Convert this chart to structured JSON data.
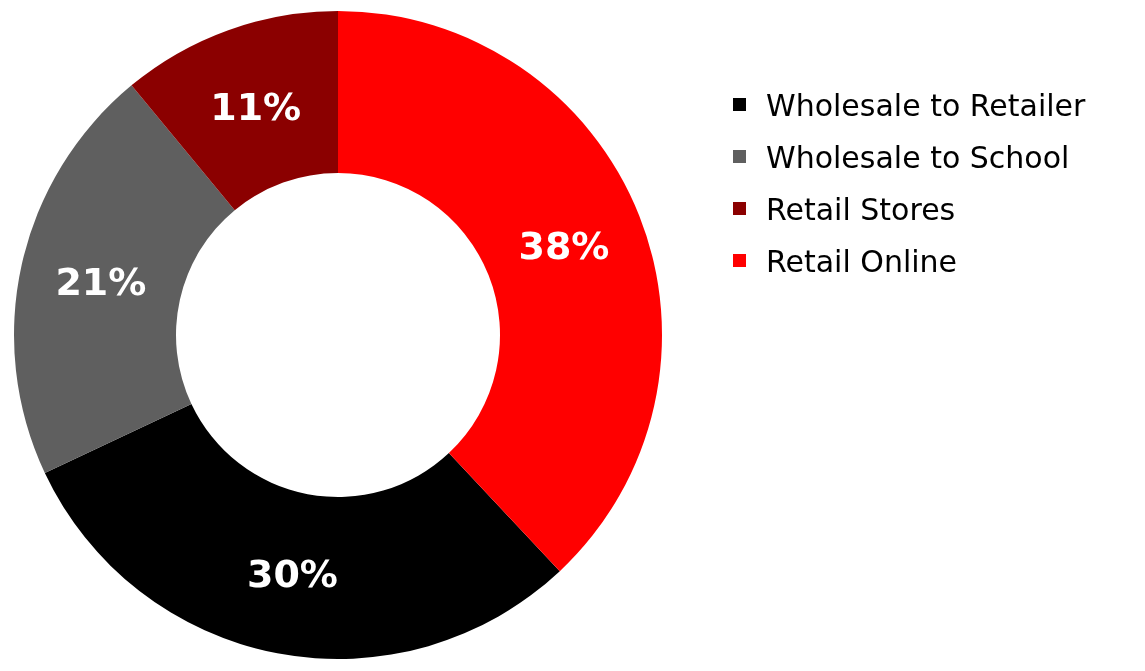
{
  "chart_data": {
    "type": "donut",
    "categories": [
      "Wholesale to Retailer",
      "Wholesale to School",
      "Retail Stores",
      "Retail Online"
    ],
    "values": [
      30,
      21,
      11,
      38
    ],
    "value_labels": [
      "30%",
      "21%",
      "11%",
      "38%"
    ],
    "colors": [
      "#000000",
      "#5f5f5f",
      "#8b0000",
      "#ff0000"
    ],
    "legend": "right"
  }
}
